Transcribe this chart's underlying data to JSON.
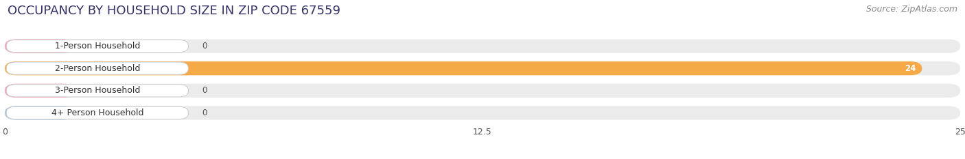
{
  "title": "OCCUPANCY BY HOUSEHOLD SIZE IN ZIP CODE 67559",
  "source": "Source: ZipAtlas.com",
  "categories": [
    "1-Person Household",
    "2-Person Household",
    "3-Person Household",
    "4+ Person Household"
  ],
  "values": [
    0,
    24,
    0,
    0
  ],
  "bar_colors": [
    "#f4a0b0",
    "#f5a947",
    "#f4a0b0",
    "#a8c4e0"
  ],
  "xlim": [
    0,
    25
  ],
  "xticks": [
    0,
    12.5,
    25
  ],
  "xtick_labels": [
    "0",
    "12.5",
    "25"
  ],
  "background_color": "#ffffff",
  "bar_bg_color": "#ebebeb",
  "title_fontsize": 13,
  "source_fontsize": 9,
  "label_fontsize": 9,
  "value_fontsize": 8.5,
  "figsize": [
    14.06,
    2.33
  ],
  "dpi": 100
}
